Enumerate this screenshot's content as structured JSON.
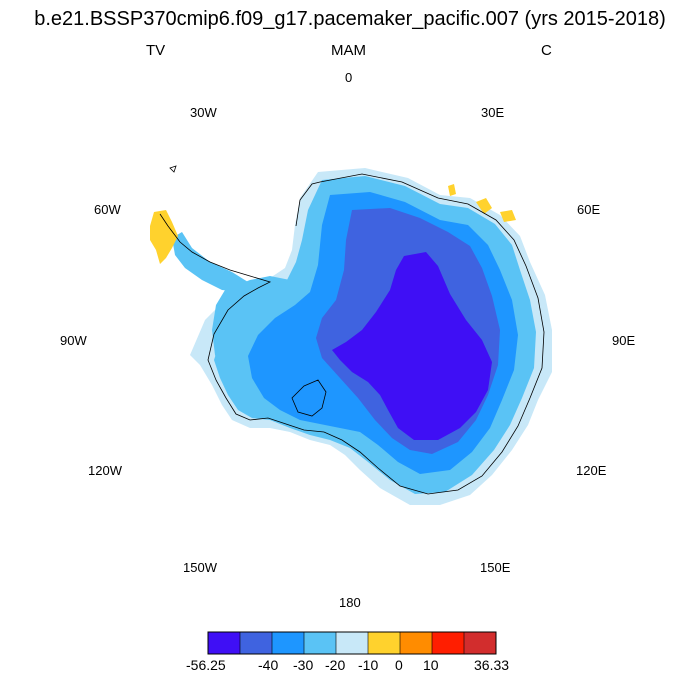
{
  "title": "b.e21.BSSP370cmip6.f09_g17.pacemaker_pacific.007 (yrs 2015-2018)",
  "left_label": "TV",
  "center_label": "MAM",
  "right_label": "C",
  "longitude_labels": {
    "lon_0": "0",
    "lon_30E": "30E",
    "lon_60E": "60E",
    "lon_90E": "90E",
    "lon_120E": "120E",
    "lon_150E": "150E",
    "lon_180": "180",
    "lon_150W": "150W",
    "lon_120W": "120W",
    "lon_90W": "90W",
    "lon_60W": "60W",
    "lon_30W": "30W"
  },
  "colorbar": {
    "colors": [
      "#3f0ff5",
      "#3f63e0",
      "#1e96ff",
      "#5ac3f5",
      "#c8e8f8",
      "#ffd22d",
      "#ff8c00",
      "#ff1e00",
      "#d22d2d"
    ],
    "labels": {
      "min": "-56.25",
      "l1": "-40",
      "l2": "-30",
      "l3": "-20",
      "l4": "-10",
      "l5": "0",
      "l6": "10",
      "max": "36.33"
    }
  },
  "map_fill_colors": {
    "lightest": "#c8e8f8",
    "light": "#5ac3f5",
    "mid": "#1e96ff",
    "dark": "#3f63e0",
    "darkest": "#3f0ff5",
    "positive": "#ffd22d"
  }
}
